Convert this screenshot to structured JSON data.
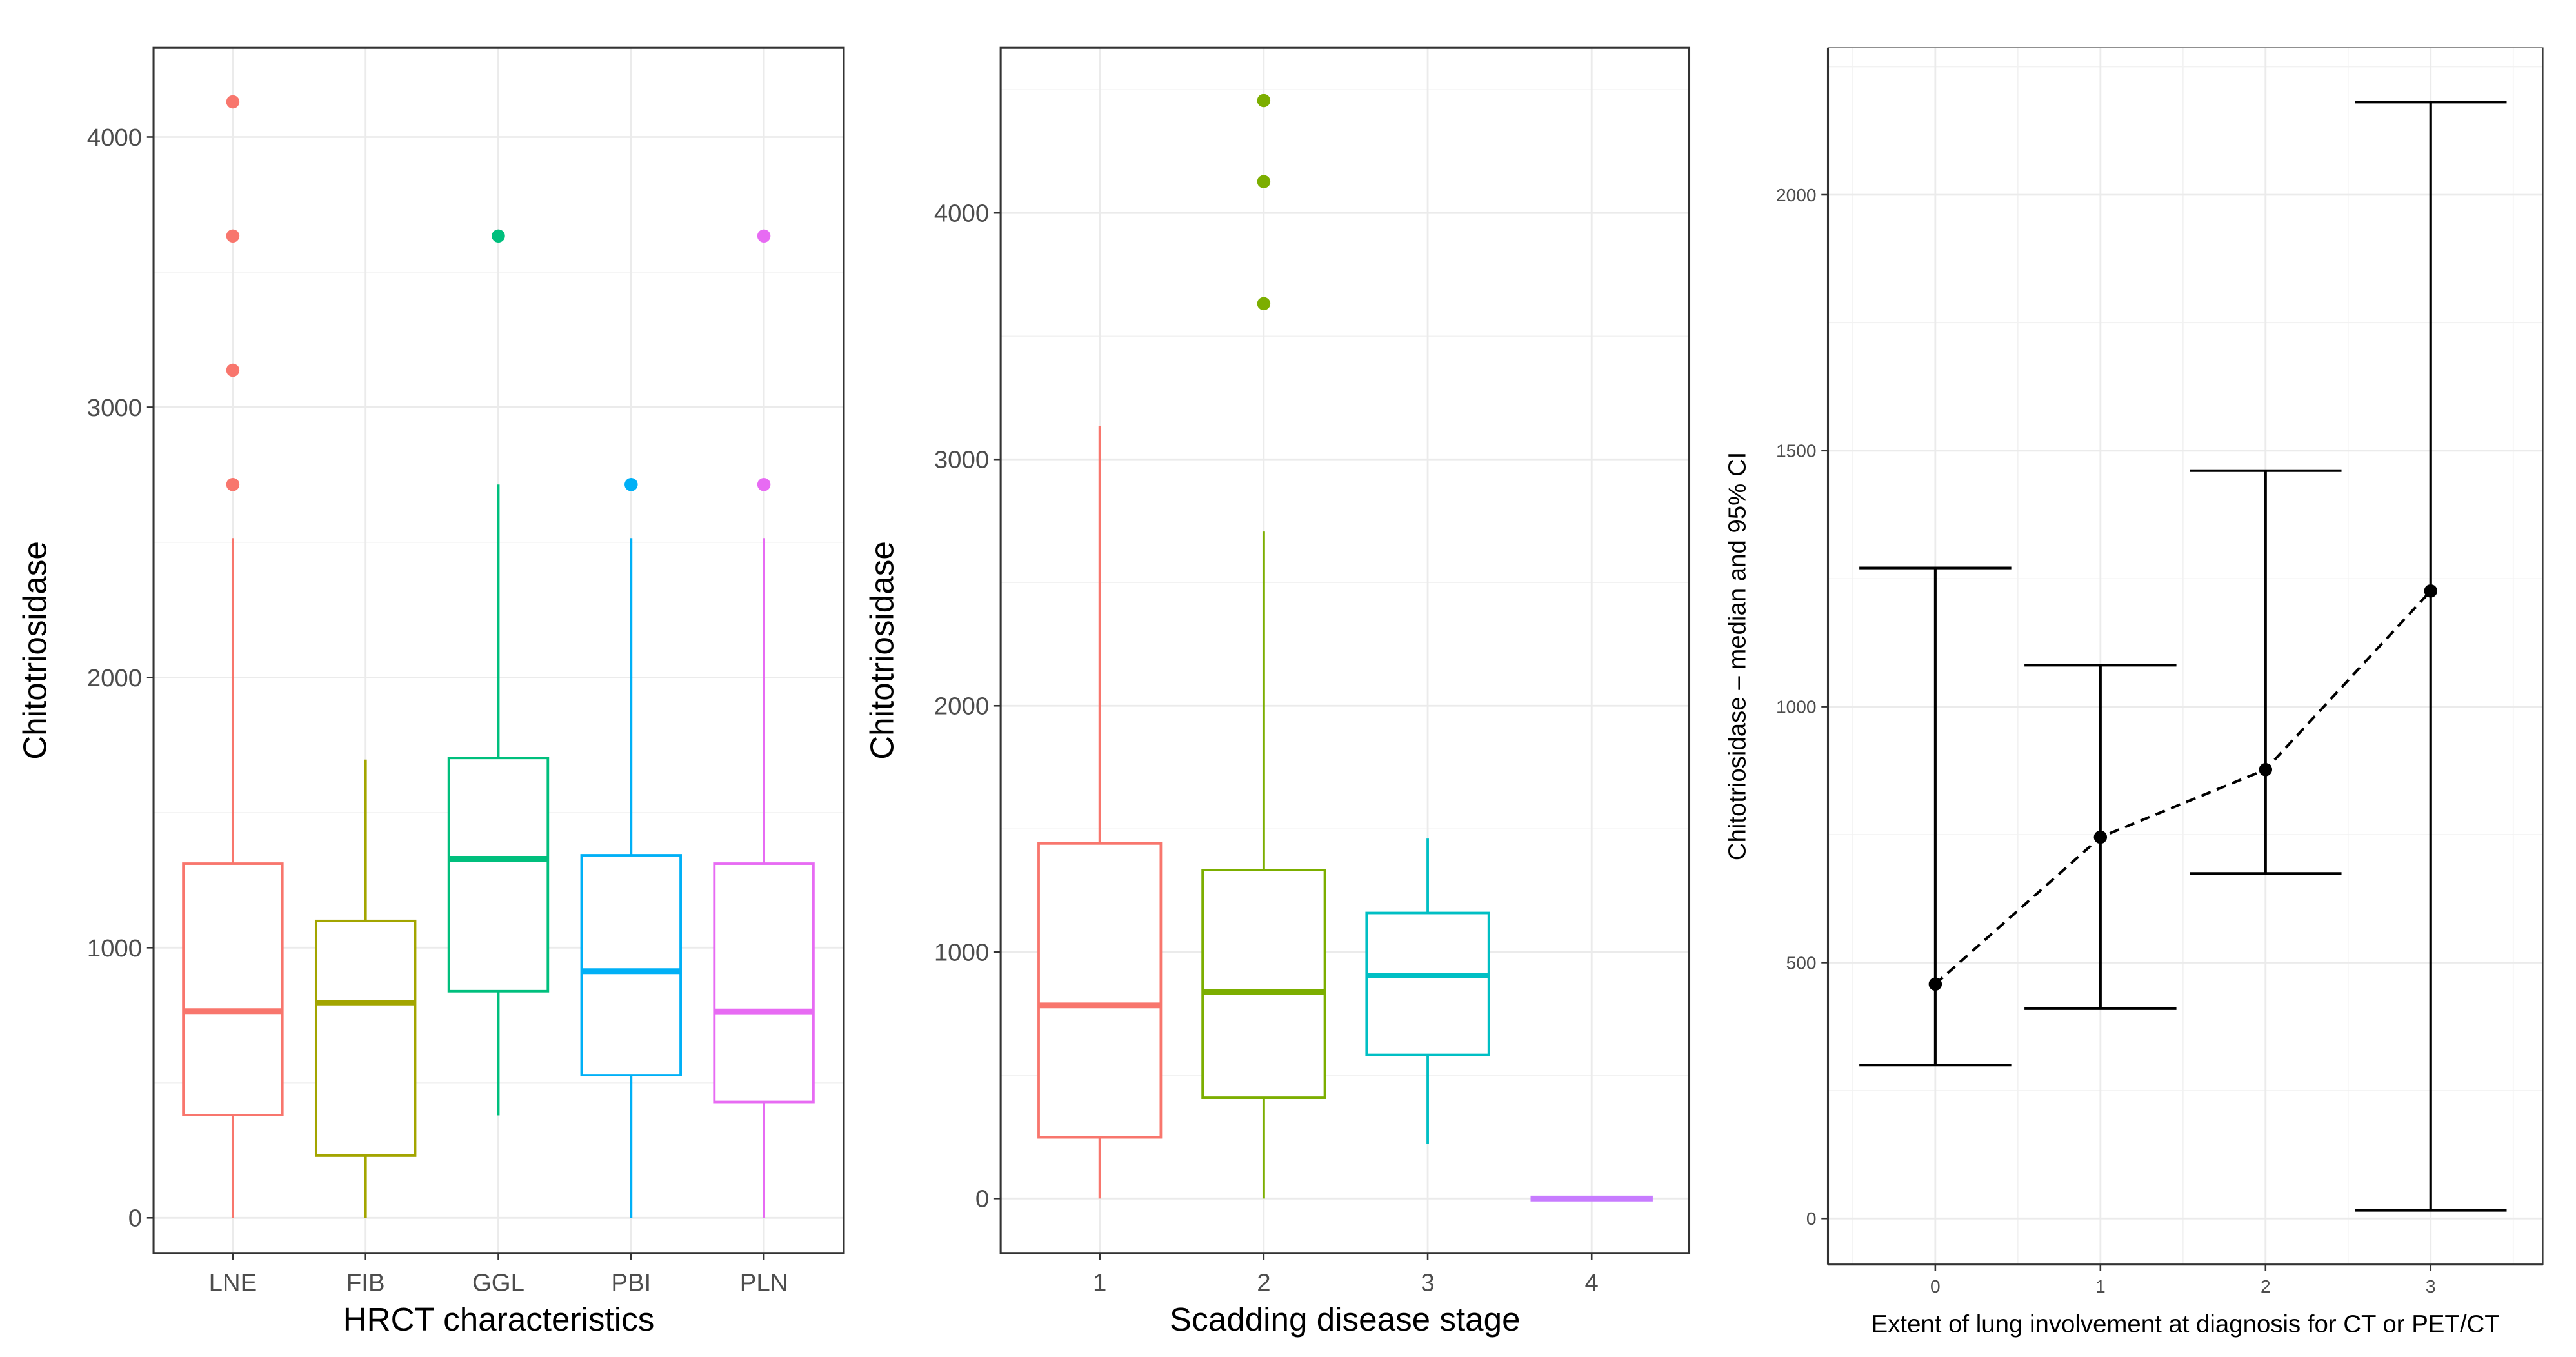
{
  "chart_data": [
    {
      "type": "box",
      "title": "",
      "xlabel": "HRCT characteristics",
      "ylabel": "Chitotriosidase",
      "ylim": [
        -130,
        4330
      ],
      "yticks": [
        0,
        1000,
        2000,
        3000,
        4000
      ],
      "grid": true,
      "categories": [
        "LNE",
        "FIB",
        "GGL",
        "PBI",
        "PLN"
      ],
      "colors": [
        "#F8766D",
        "#A3A500",
        "#00BF7D",
        "#00B0F6",
        "#E76BF3"
      ],
      "boxes": [
        {
          "min": 0,
          "q1": 380,
          "median": 765,
          "q3": 1311,
          "max": 2516,
          "outliers": [
            2714,
            3137,
            3634,
            4130
          ]
        },
        {
          "min": 0,
          "q1": 230,
          "median": 795,
          "q3": 1099,
          "max": 1696,
          "outliers": []
        },
        {
          "min": 379,
          "q1": 839,
          "median": 1329,
          "q3": 1702,
          "max": 2714,
          "outliers": [
            3634
          ]
        },
        {
          "min": 0,
          "q1": 528,
          "median": 913,
          "q3": 1342,
          "max": 2516,
          "outliers": [
            2714
          ]
        },
        {
          "min": 0,
          "q1": 429,
          "median": 764,
          "q3": 1311,
          "max": 2516,
          "outliers": [
            2714,
            3634
          ]
        }
      ]
    },
    {
      "type": "box",
      "title": "",
      "xlabel": "Scadding disease stage",
      "ylabel": "Chitotriosidase",
      "ylim": [
        -221,
        4670
      ],
      "yticks": [
        0,
        1000,
        2000,
        3000,
        4000
      ],
      "grid": true,
      "categories": [
        "1",
        "2",
        "3",
        "4"
      ],
      "colors": [
        "#F8766D",
        "#7CAE00",
        "#00BFC4",
        "#C77CFF"
      ],
      "boxes": [
        {
          "min": 0,
          "q1": 248,
          "median": 784,
          "q3": 1441,
          "max": 3136,
          "outliers": []
        },
        {
          "min": 0,
          "q1": 409,
          "median": 838,
          "q3": 1333,
          "max": 2707,
          "outliers": [
            3632,
            4127,
            4456
          ]
        },
        {
          "min": 221,
          "q1": 583,
          "median": 905,
          "q3": 1159,
          "max": 1461,
          "outliers": []
        },
        {
          "min": 0,
          "q1": 0,
          "median": 0,
          "q3": 0,
          "max": 0,
          "outliers": []
        }
      ]
    },
    {
      "type": "errorbar",
      "title": "",
      "xlabel": "Extent of lung involvement at diagnosis for CT or PET/CT",
      "ylabel": "Chitotriosidase – median and 95% CI",
      "ylim": [
        -90,
        2287
      ],
      "yticks": [
        0,
        500,
        1000,
        1500,
        2000
      ],
      "grid": true,
      "categories": [
        "0",
        "1",
        "2",
        "3"
      ],
      "points": [
        {
          "median": 458,
          "lower": 300,
          "upper": 1271
        },
        {
          "median": 745,
          "lower": 410,
          "upper": 1081
        },
        {
          "median": 877,
          "lower": 674,
          "upper": 1461
        },
        {
          "median": 1226,
          "lower": 16,
          "upper": 2181
        }
      ]
    }
  ]
}
